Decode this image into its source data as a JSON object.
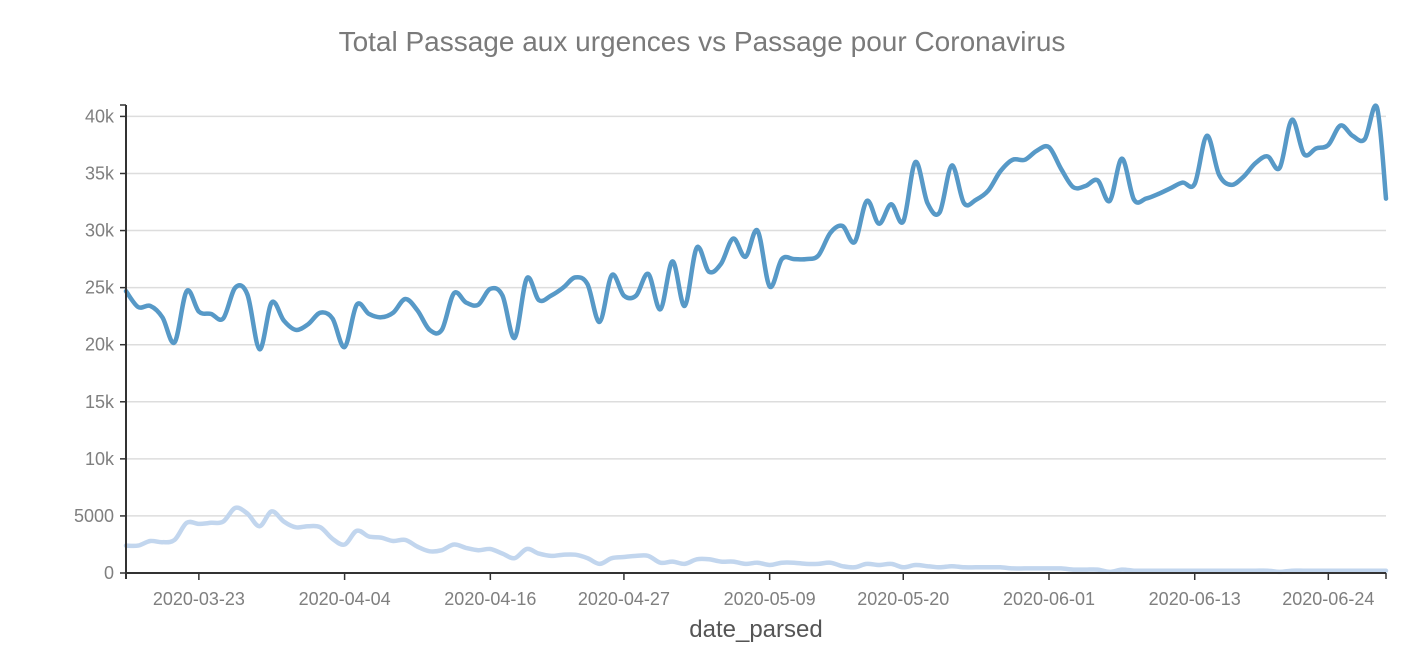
{
  "chart_data": {
    "type": "line",
    "title": "Total Passage aux urgences vs Passage pour Coronavirus",
    "xlabel": "date_parsed",
    "ylabel": "",
    "grid": true,
    "x_start": "2020-03-17",
    "x_end": "2020-06-28",
    "ylim": [
      0,
      41000
    ],
    "y_ticks": [
      0,
      5000,
      10000,
      15000,
      20000,
      25000,
      30000,
      35000,
      40000
    ],
    "y_tick_labels": [
      "0",
      "5000",
      "10k",
      "15k",
      "20k",
      "25k",
      "30k",
      "35k",
      "40k"
    ],
    "x_tick_labels": [
      "2020-03-23",
      "2020-04-04",
      "2020-04-16",
      "2020-04-27",
      "2020-05-09",
      "2020-05-20",
      "2020-06-01",
      "2020-06-13",
      "2020-06-24"
    ],
    "colors": {
      "total": "#5799c7",
      "coronavirus": "#c2d6ee"
    },
    "series": [
      {
        "color": "#5799c7",
        "values": [
          [
            "2020-03-17",
            24700
          ],
          [
            "2020-03-18",
            23300
          ],
          [
            "2020-03-19",
            23400
          ],
          [
            "2020-03-20",
            22400
          ],
          [
            "2020-03-21",
            20200
          ],
          [
            "2020-03-22",
            24700
          ],
          [
            "2020-03-23",
            22900
          ],
          [
            "2020-03-24",
            22700
          ],
          [
            "2020-03-25",
            22300
          ],
          [
            "2020-03-26",
            25000
          ],
          [
            "2020-03-27",
            24400
          ],
          [
            "2020-03-28",
            19600
          ],
          [
            "2020-03-29",
            23700
          ],
          [
            "2020-03-30",
            22100
          ],
          [
            "2020-03-31",
            21300
          ],
          [
            "2020-04-01",
            21800
          ],
          [
            "2020-04-02",
            22800
          ],
          [
            "2020-04-03",
            22300
          ],
          [
            "2020-04-04",
            19800
          ],
          [
            "2020-04-05",
            23500
          ],
          [
            "2020-04-06",
            22700
          ],
          [
            "2020-04-07",
            22400
          ],
          [
            "2020-04-08",
            22800
          ],
          [
            "2020-04-09",
            24000
          ],
          [
            "2020-04-10",
            23000
          ],
          [
            "2020-04-11",
            21300
          ],
          [
            "2020-04-12",
            21300
          ],
          [
            "2020-04-13",
            24500
          ],
          [
            "2020-04-14",
            23700
          ],
          [
            "2020-04-15",
            23500
          ],
          [
            "2020-04-16",
            24900
          ],
          [
            "2020-04-17",
            24300
          ],
          [
            "2020-04-18",
            20600
          ],
          [
            "2020-04-19",
            25800
          ],
          [
            "2020-04-20",
            23900
          ],
          [
            "2020-04-21",
            24300
          ],
          [
            "2020-04-22",
            25000
          ],
          [
            "2020-04-23",
            25900
          ],
          [
            "2020-04-24",
            25300
          ],
          [
            "2020-04-25",
            22000
          ],
          [
            "2020-04-26",
            26100
          ],
          [
            "2020-04-27",
            24300
          ],
          [
            "2020-04-28",
            24300
          ],
          [
            "2020-04-29",
            26200
          ],
          [
            "2020-04-30",
            23100
          ],
          [
            "2020-05-01",
            27300
          ],
          [
            "2020-05-02",
            23400
          ],
          [
            "2020-05-03",
            28500
          ],
          [
            "2020-05-04",
            26400
          ],
          [
            "2020-05-05",
            27100
          ],
          [
            "2020-05-06",
            29300
          ],
          [
            "2020-05-07",
            27700
          ],
          [
            "2020-05-08",
            30000
          ],
          [
            "2020-05-09",
            25100
          ],
          [
            "2020-05-10",
            27500
          ],
          [
            "2020-05-11",
            27500
          ],
          [
            "2020-05-12",
            27500
          ],
          [
            "2020-05-13",
            27800
          ],
          [
            "2020-05-14",
            29800
          ],
          [
            "2020-05-15",
            30400
          ],
          [
            "2020-05-16",
            29000
          ],
          [
            "2020-05-17",
            32600
          ],
          [
            "2020-05-18",
            30600
          ],
          [
            "2020-05-19",
            32300
          ],
          [
            "2020-05-20",
            30800
          ],
          [
            "2020-05-21",
            36000
          ],
          [
            "2020-05-22",
            32400
          ],
          [
            "2020-05-23",
            31600
          ],
          [
            "2020-05-24",
            35700
          ],
          [
            "2020-05-25",
            32400
          ],
          [
            "2020-05-26",
            32700
          ],
          [
            "2020-05-27",
            33500
          ],
          [
            "2020-05-28",
            35200
          ],
          [
            "2020-05-29",
            36200
          ],
          [
            "2020-05-30",
            36200
          ],
          [
            "2020-05-31",
            37000
          ],
          [
            "2020-06-01",
            37300
          ],
          [
            "2020-06-02",
            35400
          ],
          [
            "2020-06-03",
            33800
          ],
          [
            "2020-06-04",
            33900
          ],
          [
            "2020-06-05",
            34400
          ],
          [
            "2020-06-06",
            32600
          ],
          [
            "2020-06-07",
            36300
          ],
          [
            "2020-06-08",
            32700
          ],
          [
            "2020-06-09",
            32800
          ],
          [
            "2020-06-10",
            33200
          ],
          [
            "2020-06-11",
            33700
          ],
          [
            "2020-06-12",
            34200
          ],
          [
            "2020-06-13",
            34100
          ],
          [
            "2020-06-14",
            38300
          ],
          [
            "2020-06-15",
            34900
          ],
          [
            "2020-06-16",
            34000
          ],
          [
            "2020-06-17",
            34700
          ],
          [
            "2020-06-18",
            35900
          ],
          [
            "2020-06-19",
            36500
          ],
          [
            "2020-06-20",
            35500
          ],
          [
            "2020-06-21",
            39700
          ],
          [
            "2020-06-22",
            36700
          ],
          [
            "2020-06-23",
            37200
          ],
          [
            "2020-06-24",
            37500
          ],
          [
            "2020-06-25",
            39200
          ],
          [
            "2020-06-26",
            38300
          ],
          [
            "2020-06-27",
            38000
          ],
          [
            "2020-06-28",
            40800
          ],
          [
            "2020-06-28T18:00",
            32800
          ]
        ]
      },
      {
        "color": "#c2d6ee",
        "values": [
          [
            "2020-03-17",
            2400
          ],
          [
            "2020-03-18",
            2400
          ],
          [
            "2020-03-19",
            2800
          ],
          [
            "2020-03-20",
            2700
          ],
          [
            "2020-03-21",
            2900
          ],
          [
            "2020-03-22",
            4400
          ],
          [
            "2020-03-23",
            4300
          ],
          [
            "2020-03-24",
            4400
          ],
          [
            "2020-03-25",
            4500
          ],
          [
            "2020-03-26",
            5700
          ],
          [
            "2020-03-27",
            5200
          ],
          [
            "2020-03-28",
            4100
          ],
          [
            "2020-03-29",
            5400
          ],
          [
            "2020-03-30",
            4500
          ],
          [
            "2020-03-31",
            4000
          ],
          [
            "2020-04-01",
            4100
          ],
          [
            "2020-04-02",
            4000
          ],
          [
            "2020-04-03",
            3000
          ],
          [
            "2020-04-04",
            2500
          ],
          [
            "2020-04-05",
            3700
          ],
          [
            "2020-04-06",
            3200
          ],
          [
            "2020-04-07",
            3100
          ],
          [
            "2020-04-08",
            2800
          ],
          [
            "2020-04-09",
            2900
          ],
          [
            "2020-04-10",
            2300
          ],
          [
            "2020-04-11",
            1900
          ],
          [
            "2020-04-12",
            2000
          ],
          [
            "2020-04-13",
            2500
          ],
          [
            "2020-04-14",
            2200
          ],
          [
            "2020-04-15",
            2000
          ],
          [
            "2020-04-16",
            2100
          ],
          [
            "2020-04-17",
            1700
          ],
          [
            "2020-04-18",
            1300
          ],
          [
            "2020-04-19",
            2100
          ],
          [
            "2020-04-20",
            1700
          ],
          [
            "2020-04-21",
            1500
          ],
          [
            "2020-04-22",
            1600
          ],
          [
            "2020-04-23",
            1600
          ],
          [
            "2020-04-24",
            1300
          ],
          [
            "2020-04-25",
            800
          ],
          [
            "2020-04-26",
            1300
          ],
          [
            "2020-04-27",
            1400
          ],
          [
            "2020-04-28",
            1500
          ],
          [
            "2020-04-29",
            1500
          ],
          [
            "2020-04-30",
            900
          ],
          [
            "2020-05-01",
            1000
          ],
          [
            "2020-05-02",
            800
          ],
          [
            "2020-05-03",
            1200
          ],
          [
            "2020-05-04",
            1200
          ],
          [
            "2020-05-05",
            1000
          ],
          [
            "2020-05-06",
            1000
          ],
          [
            "2020-05-07",
            800
          ],
          [
            "2020-05-08",
            900
          ],
          [
            "2020-05-09",
            700
          ],
          [
            "2020-05-10",
            900
          ],
          [
            "2020-05-11",
            900
          ],
          [
            "2020-05-12",
            800
          ],
          [
            "2020-05-13",
            800
          ],
          [
            "2020-05-14",
            900
          ],
          [
            "2020-05-15",
            600
          ],
          [
            "2020-05-16",
            500
          ],
          [
            "2020-05-17",
            800
          ],
          [
            "2020-05-18",
            700
          ],
          [
            "2020-05-19",
            800
          ],
          [
            "2020-05-20",
            500
          ],
          [
            "2020-05-21",
            700
          ],
          [
            "2020-05-22",
            600
          ],
          [
            "2020-05-23",
            500
          ],
          [
            "2020-05-24",
            600
          ],
          [
            "2020-05-25",
            500
          ],
          [
            "2020-05-26",
            500
          ],
          [
            "2020-05-27",
            500
          ],
          [
            "2020-05-28",
            500
          ],
          [
            "2020-05-29",
            400
          ],
          [
            "2020-05-30",
            400
          ],
          [
            "2020-05-31",
            400
          ],
          [
            "2020-06-01",
            400
          ],
          [
            "2020-06-02",
            400
          ],
          [
            "2020-06-03",
            300
          ],
          [
            "2020-06-04",
            300
          ],
          [
            "2020-06-05",
            300
          ],
          [
            "2020-06-06",
            100
          ],
          [
            "2020-06-07",
            300
          ],
          [
            "2020-06-08",
            200
          ],
          [
            "2020-06-09",
            200
          ],
          [
            "2020-06-10",
            200
          ],
          [
            "2020-06-11",
            200
          ],
          [
            "2020-06-12",
            200
          ],
          [
            "2020-06-13",
            200
          ],
          [
            "2020-06-14",
            200
          ],
          [
            "2020-06-15",
            200
          ],
          [
            "2020-06-16",
            200
          ],
          [
            "2020-06-17",
            200
          ],
          [
            "2020-06-18",
            200
          ],
          [
            "2020-06-19",
            200
          ],
          [
            "2020-06-20",
            100
          ],
          [
            "2020-06-21",
            200
          ],
          [
            "2020-06-22",
            200
          ],
          [
            "2020-06-23",
            200
          ],
          [
            "2020-06-24",
            200
          ],
          [
            "2020-06-25",
            200
          ],
          [
            "2020-06-26",
            200
          ],
          [
            "2020-06-27",
            200
          ],
          [
            "2020-06-28",
            200
          ],
          [
            "2020-06-28T18:00",
            200
          ]
        ]
      }
    ]
  }
}
